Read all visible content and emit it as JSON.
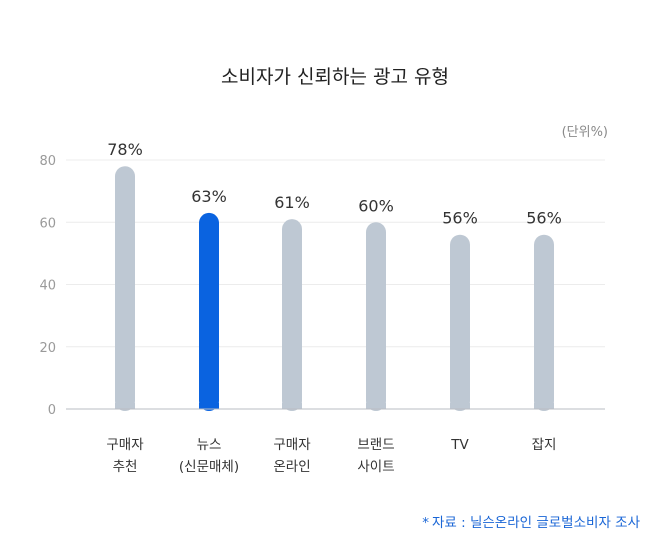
{
  "chart_data": {
    "type": "bar",
    "title": "소비자가 신뢰하는 광고 유형",
    "unit_label": "(단위%)",
    "categories": [
      [
        "구매자",
        "추천"
      ],
      [
        "뉴스",
        "(신문매체)"
      ],
      [
        "구매자",
        "온라인"
      ],
      [
        "브랜드",
        "사이트"
      ],
      [
        "TV"
      ],
      [
        "잡지"
      ]
    ],
    "values": [
      78,
      63,
      61,
      60,
      56,
      56
    ],
    "value_labels": [
      "78%",
      "63%",
      "61%",
      "60%",
      "56%",
      "56%"
    ],
    "highlight_index": 1,
    "yticks": [
      0,
      20,
      40,
      60,
      80
    ],
    "ylim": [
      0,
      80
    ],
    "grid": true,
    "colors": {
      "bar": "#bec8d3",
      "highlight": "#0a63e0",
      "highlight_label": "#1a66d6"
    },
    "source": "자료 : 닐슨온라인 글로벌소비자 조사",
    "source_marker": "*"
  }
}
